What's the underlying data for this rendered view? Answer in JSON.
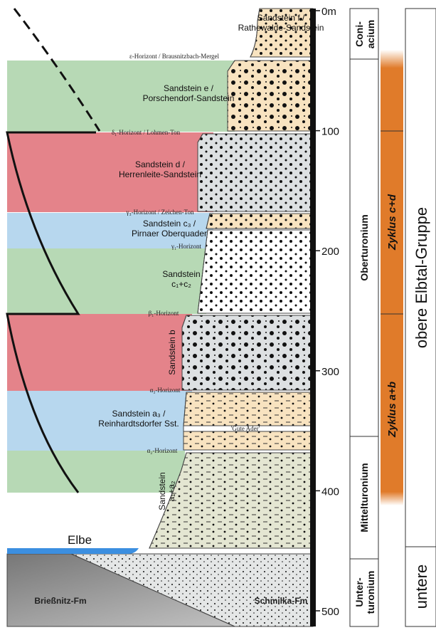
{
  "depth_axis": {
    "ticks": [
      {
        "value": 0,
        "label": "0m"
      },
      100,
      200,
      300,
      400,
      500
    ]
  },
  "layers": {
    "f": [
      "Sandstein f /",
      "Rathewalde-Sandstein"
    ],
    "epsilon": "ε-Horizont / Brausnitzbach-Mergel",
    "e": [
      "Sandstein e /",
      "Porschendorf-Sandstein"
    ],
    "delta": "δ₁-Horizont / Lohmen-Ton",
    "d": [
      "Sandstein d /",
      "Herrenleite-Sandstein"
    ],
    "gamma3": "γ₃-Horizont / Zeichen-Ton",
    "c3": [
      "Sandstein c₃ /",
      "Pirnaer Oberquader"
    ],
    "gamma1": "γ₁-Horizont",
    "c12": [
      "Sandstein",
      "c₁+c₂"
    ],
    "beta": "β₁-Horizont",
    "b": "Sandstein b",
    "alpha3": "α₃-Horizont",
    "a3": [
      "Sandstein a₃ /",
      "Reinhardtsdorfer Sst."
    ],
    "gute_ader": "'Gute Ader'",
    "alpha2": "α₂-Horizont",
    "a12": [
      "Sandstein",
      "a₁+a₂"
    ],
    "elbe": "Elbe",
    "briessnitz": "Brießnitz-Fm",
    "schmilka": "Schmilka-Fm"
  },
  "stages": {
    "coniacium": [
      "Coni-",
      "acium"
    ],
    "oberturonium": "Oberturonium",
    "mittelturonium": "Mittelturonium",
    "unterturonium": [
      "Unter-",
      "turonium"
    ]
  },
  "cycles": {
    "cd": "Zyklus c+d",
    "ab": "Zyklus a+b"
  },
  "groups": {
    "obere": "obere Elbtal-Gruppe",
    "untere": "untere"
  }
}
